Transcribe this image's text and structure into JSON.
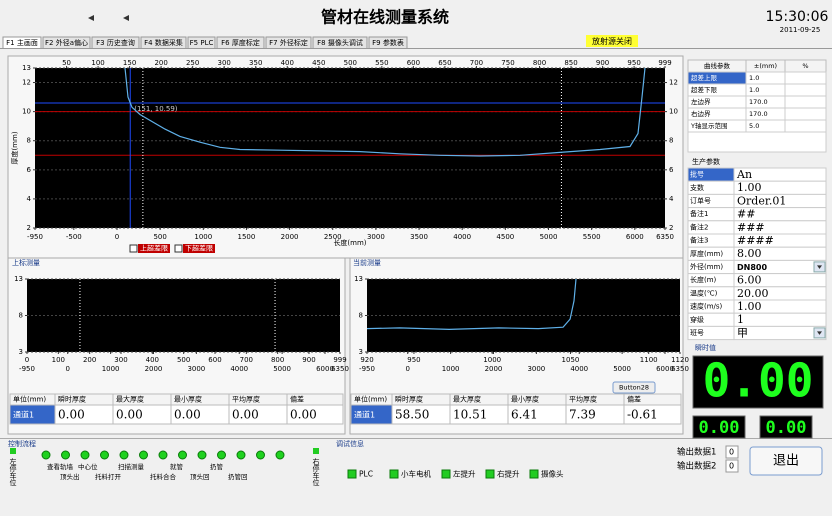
{
  "header": {
    "title": "管材在线测量系统",
    "time": "15:30:06",
    "date": "2011-09-25",
    "status": "放射源关闭"
  },
  "tabs": [
    "F1 主画面",
    "F2 外径a偏心",
    "F3 历史查询",
    "F4 数据采集",
    "F5 PLC",
    "F6 厚度标定",
    "F7 外径标定",
    "F8 摄像头调试",
    "F9 参数表"
  ],
  "chart_data": [
    {
      "type": "line",
      "x_label": "长度(mm)",
      "y_label": "厚度(mm)",
      "color": "#5fb0e8",
      "grid": true,
      "x": [
        93,
        128,
        174,
        267,
        383,
        556,
        730,
        962,
        1194,
        1425,
        1889,
        2352,
        2816,
        3279,
        3743,
        4206,
        4670,
        5133,
        5597,
        5945,
        6037,
        6083,
        6118
      ],
      "values": [
        13,
        11,
        10.3,
        9.8,
        9.4,
        8.8,
        8.3,
        7.9,
        7.55,
        7.4,
        7.35,
        7.3,
        7.25,
        7.1,
        7.0,
        6.95,
        7.0,
        7.2,
        7.4,
        7.6,
        8.5,
        11,
        13
      ],
      "xlim": [
        -950,
        6350
      ],
      "xticks": [
        -950,
        -500,
        0,
        500,
        1000,
        1500,
        2000,
        2500,
        3000,
        3500,
        4000,
        4500,
        5000,
        5500,
        6000,
        6350
      ],
      "x2lim": [
        0,
        999
      ],
      "x2ticks": [
        50,
        100,
        150,
        200,
        250,
        300,
        350,
        400,
        450,
        500,
        550,
        600,
        650,
        700,
        750,
        800,
        850,
        900,
        950,
        999
      ],
      "ylim": [
        2,
        13
      ],
      "yticks": [
        2,
        4,
        6,
        8,
        10,
        12,
        13
      ],
      "y2lim": [
        2,
        13
      ],
      "y2ticks": [
        2,
        4,
        6,
        8,
        10,
        12
      ],
      "limit_lines": [
        {
          "name": "上超差限",
          "value": 10,
          "color": "#c00000"
        },
        {
          "name": "下超差限",
          "value": 7,
          "color": "#c00000"
        }
      ],
      "boundaries": [
        300,
        5150
      ],
      "cursor": {
        "x": 151,
        "y": 10.59,
        "label": "(151, 10.59)"
      }
    },
    {
      "type": "line",
      "title": "上标测量",
      "color": "#5fb0e8",
      "grid": true,
      "x": [],
      "values": [],
      "xlim": [
        -950,
        6350
      ],
      "xticks": [
        -950,
        0,
        1000,
        2000,
        3000,
        4000,
        5000,
        6000,
        6350
      ],
      "x2lim": [
        0,
        999
      ],
      "x2ticks": [
        0,
        100,
        200,
        300,
        400,
        500,
        600,
        700,
        800,
        900,
        999
      ],
      "ylim": [
        3,
        13
      ],
      "yticks": [
        3,
        8,
        13
      ],
      "boundaries": [
        285,
        4835
      ]
    },
    {
      "type": "line",
      "title": "当前测量",
      "color": "#5fb0e8",
      "grid": true,
      "x": [
        -950,
        -188,
        967,
        2122,
        3046,
        3624,
        3786,
        3878,
        3924
      ],
      "values": [
        6.2,
        6.3,
        6.1,
        6.3,
        6.2,
        6.4,
        7.5,
        10,
        13
      ],
      "xlim": [
        -950,
        6350
      ],
      "xticks": [
        -950,
        0,
        1000,
        2000,
        3000,
        4000,
        5000,
        6000,
        6350
      ],
      "x2lim": [
        920,
        1120
      ],
      "x2ticks": [
        920,
        950,
        1000,
        1050,
        1100,
        1120
      ],
      "ylim": [
        3,
        13
      ],
      "yticks": [
        3,
        8,
        13
      ]
    }
  ],
  "curve_params": {
    "columns": [
      "曲线参数",
      "±(mm)",
      "%"
    ],
    "rows": [
      [
        "超差上限",
        "1.0"
      ],
      [
        "超差下限",
        "1.0"
      ],
      [
        "左边界",
        "170.0"
      ],
      [
        "右边界",
        "170.0"
      ],
      [
        "Y轴显示范围",
        "5.0"
      ]
    ]
  },
  "production": {
    "title": "生产参数",
    "rows": [
      [
        "批号",
        "An"
      ],
      [
        "支数",
        "1.00"
      ],
      [
        "订单号",
        "Order.01"
      ],
      [
        "备注1",
        "##"
      ],
      [
        "备注2",
        "###"
      ],
      [
        "备注3",
        "####"
      ],
      [
        "厚度(mm)",
        "8.00"
      ],
      [
        "外径(mm)",
        "DN800"
      ],
      [
        "长度(m)",
        "6.00"
      ],
      [
        "温度(℃)",
        "20.00"
      ],
      [
        "速度(m/s)",
        "1.00"
      ],
      [
        "穿级",
        "1"
      ],
      [
        "班号",
        "甲"
      ]
    ]
  },
  "instant": {
    "title": "瞬时值",
    "main": "0.00",
    "small": [
      "0.00",
      "0.00"
    ]
  },
  "tables": [
    {
      "columns": [
        "单位(mm)",
        "瞬时厚度",
        "最大厚度",
        "最小厚度",
        "平均厚度",
        "偏差"
      ],
      "row": [
        "通道1",
        "0.00",
        "0.00",
        "0.00",
        "0.00",
        "0.00"
      ]
    },
    {
      "columns": [
        "单位(mm)",
        "瞬时厚度",
        "最大厚度",
        "最小厚度",
        "平均厚度",
        "偏差"
      ],
      "row": [
        "通道1",
        "58.50",
        "10.51",
        "6.41",
        "7.39",
        "-0.61"
      ]
    }
  ],
  "button28": "Button28",
  "control": {
    "title": "控制流程",
    "left": "左停车位",
    "right": "右停车位",
    "labels_top": [
      "查看轨墙",
      "中心位",
      "扫描测量",
      "就管",
      "扔管"
    ],
    "labels_bottom": [
      "顶头出",
      "托料打开",
      "托料合合",
      "顶头回",
      "扔管回"
    ]
  },
  "debug": {
    "title": "调试信息",
    "items": [
      "PLC",
      "小车电机",
      "左提升",
      "右提升",
      "摄像头"
    ]
  },
  "outputs": [
    {
      "label": "输出数据1",
      "value": "0"
    },
    {
      "label": "输出数据2",
      "value": "0"
    }
  ],
  "exit": "退出"
}
